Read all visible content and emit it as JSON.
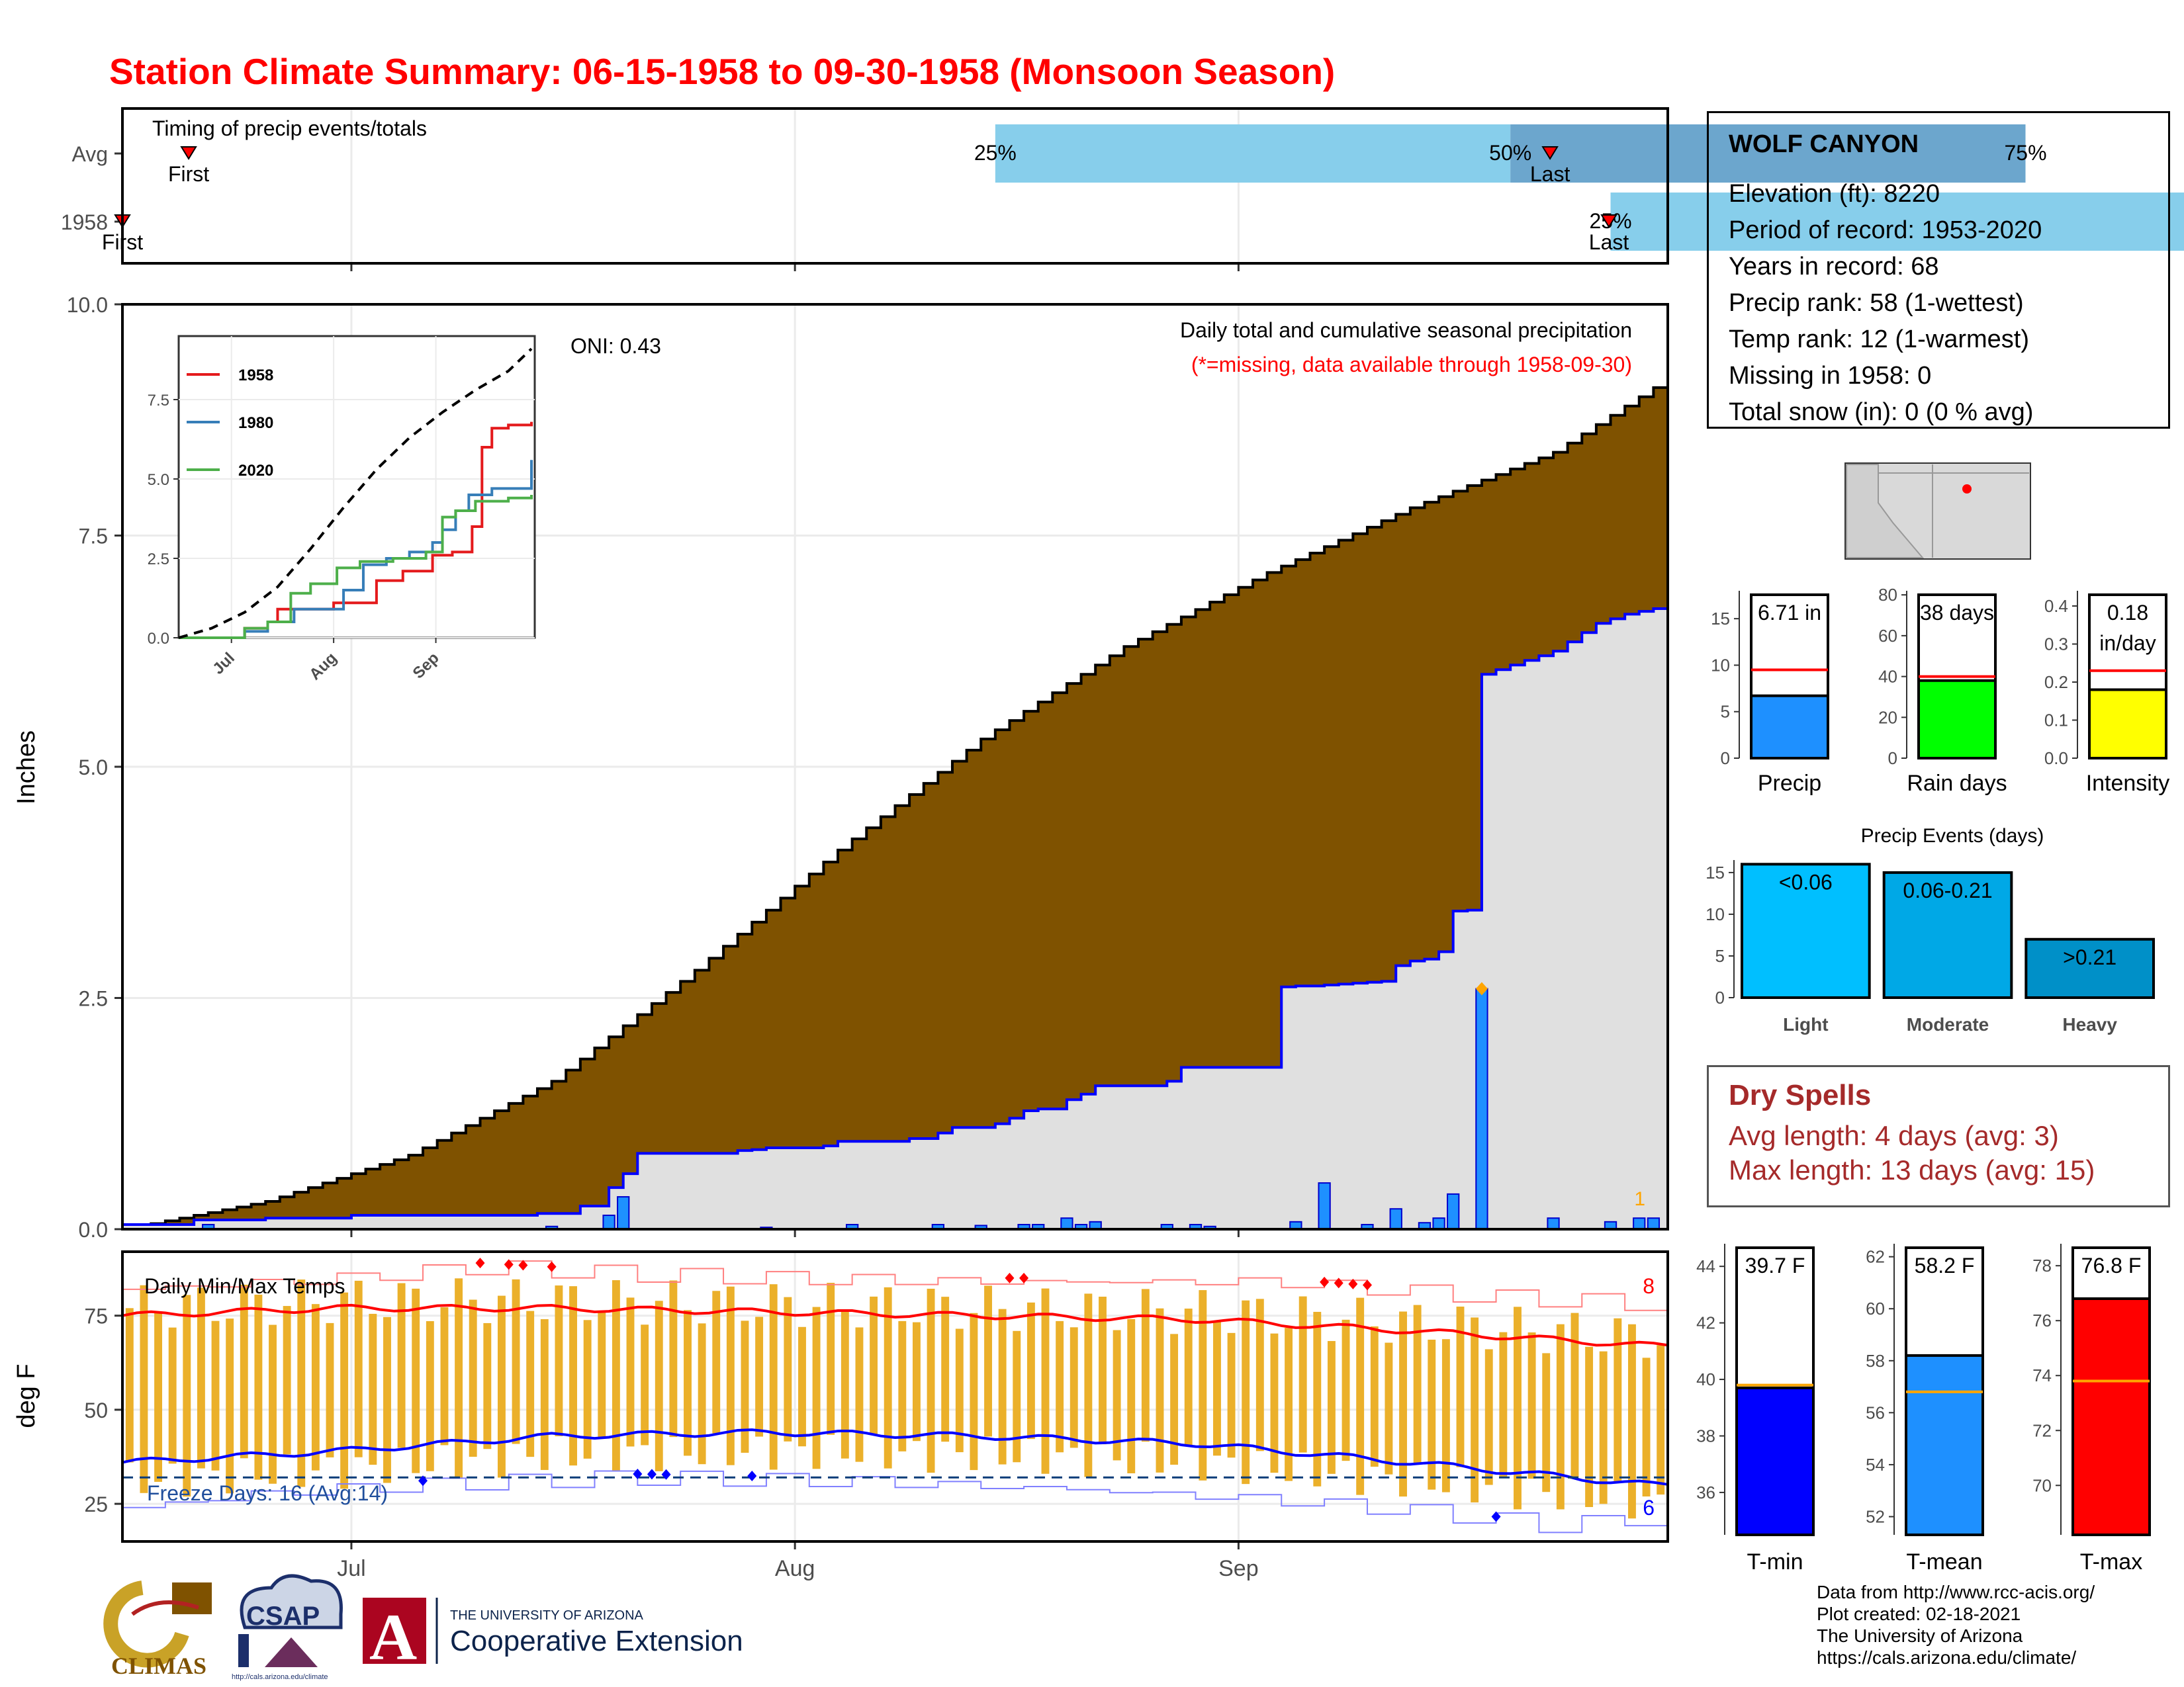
{
  "title": "Station Climate Summary: 06-15-1958 to 09-30-1958 (Monsoon Season)",
  "colors": {
    "title": "#FF0000",
    "cumulative_avg": "#7F5200",
    "cumulative_year": "#E0E0E0",
    "daily_bar": "#1E90FF",
    "quantile_light": "#87CEEB",
    "quantile_dark": "#6CA6CD",
    "temp_bar": "#EBB02A",
    "tmax_line": "#FF0000",
    "tmin_line": "#0000FF",
    "light": "#00BFFF",
    "moderate": "#00A8E6",
    "heavy": "#0090C8"
  },
  "timing_panel": {
    "label": "Timing of precip events/totals",
    "rows": [
      {
        "name": "Avg",
        "first_day": 9,
        "last_day": 194,
        "q25_day": 61,
        "q50_day": 97,
        "q75_day": 133,
        "first_label": "First",
        "last_label": "Last",
        "q25_label": "25%",
        "q50_label": "50%",
        "q75_label": "75%"
      },
      {
        "name": "1958",
        "first_day": 0,
        "last_day": 202,
        "q25_day": 104,
        "q50_day": 161,
        "q75_day": 167,
        "first_label": "First",
        "last_label": "Last",
        "q25_label": "25%",
        "q50_label": "50%",
        "q75_label": "75%"
      }
    ]
  },
  "chart_data": [
    {
      "type": "area",
      "title": "Daily total and cumulative seasonal precipitation",
      "subtitle": "(*=missing, data available through 1958-09-30)",
      "annotation": "ONI: 0.43",
      "corner_label": "1",
      "xlabel": "",
      "ylabel": "Inches",
      "x_range": [
        "1958-06-15",
        "1958-09-30"
      ],
      "x_ticks": [
        "Jul",
        "Aug",
        "Sep"
      ],
      "x_tick_days": [
        16,
        47,
        78
      ],
      "ylim": [
        0,
        10
      ],
      "y_ticks": [
        "0.0",
        "2.5",
        "5.0",
        "7.5",
        "10.0"
      ],
      "avg_cumulative": {
        "day": [
          0,
          10,
          20,
          30,
          40,
          50,
          60,
          70,
          80,
          90,
          100,
          107
        ],
        "inches": [
          0.0,
          0.3,
          0.8,
          1.6,
          2.8,
          4.1,
          5.3,
          6.3,
          7.1,
          7.8,
          8.4,
          9.1
        ]
      },
      "year_cumulative": {
        "day": [
          0,
          5,
          10,
          16,
          29,
          32,
          34,
          35,
          36,
          43,
          44,
          45,
          49,
          50,
          55,
          57,
          58,
          61,
          62,
          63,
          64,
          66,
          67,
          68,
          73,
          74,
          81,
          82,
          84,
          85,
          86,
          87,
          88,
          89,
          90,
          91,
          92,
          93,
          94,
          95,
          96,
          97,
          98,
          99,
          100,
          101,
          102,
          103,
          104,
          105,
          106,
          107
        ],
        "inches": [
          0.05,
          0.1,
          0.12,
          0.15,
          0.17,
          0.25,
          0.45,
          0.6,
          0.82,
          0.85,
          0.86,
          0.88,
          0.9,
          0.95,
          0.98,
          1.04,
          1.1,
          1.14,
          1.2,
          1.28,
          1.3,
          1.4,
          1.46,
          1.55,
          1.6,
          1.75,
          2.62,
          2.63,
          2.64,
          2.65,
          2.66,
          2.67,
          2.68,
          2.85,
          2.9,
          2.92,
          3.0,
          3.44,
          3.45,
          6.0,
          6.05,
          6.1,
          6.15,
          6.2,
          6.25,
          6.35,
          6.45,
          6.55,
          6.6,
          6.65,
          6.68,
          6.71
        ]
      },
      "daily_precip": {
        "day": [
          6,
          30,
          34,
          35,
          45,
          51,
          57,
          60,
          63,
          64,
          66,
          67,
          68,
          73,
          75,
          76,
          82,
          84,
          87,
          89,
          91,
          92,
          93,
          95,
          100,
          104,
          106,
          107
        ],
        "inches": [
          0.05,
          0.03,
          0.15,
          0.35,
          0.02,
          0.05,
          0.05,
          0.04,
          0.05,
          0.05,
          0.12,
          0.05,
          0.08,
          0.05,
          0.05,
          0.03,
          0.08,
          0.5,
          0.05,
          0.22,
          0.07,
          0.12,
          0.38,
          2.6,
          0.12,
          0.08,
          0.12,
          0.12
        ]
      },
      "max_marker": {
        "day": 95,
        "inches": 2.6
      }
    },
    {
      "type": "line",
      "title": "",
      "xlabel": "",
      "ylabel": "Inches",
      "x_ticks": [
        "Jul",
        "Aug",
        "Sep"
      ],
      "y_ticks": [
        "0.0",
        "2.5",
        "5.0",
        "7.5"
      ],
      "ylim": [
        0,
        10
      ],
      "series": [
        {
          "name": "1958",
          "color": "#E41A1C",
          "day": [
            0,
            20,
            27,
            30,
            37,
            47,
            60,
            68,
            77,
            83,
            89,
            92,
            95,
            100,
            107
          ],
          "inches": [
            0,
            0.3,
            0.5,
            0.9,
            0.9,
            1.1,
            1.8,
            2.1,
            2.6,
            2.7,
            3.5,
            6.0,
            6.6,
            6.7,
            6.8
          ]
        },
        {
          "name": "1980",
          "color": "#377EB8",
          "day": [
            0,
            20,
            27,
            35,
            50,
            56,
            63,
            70,
            77,
            80,
            84,
            88,
            95,
            107
          ],
          "inches": [
            0,
            0.2,
            0.5,
            0.9,
            1.5,
            2.3,
            2.5,
            2.7,
            3.0,
            3.4,
            4.0,
            4.5,
            4.7,
            5.6
          ]
        },
        {
          "name": "2020",
          "color": "#4DAF4A",
          "day": [
            0,
            20,
            27,
            34,
            40,
            48,
            55,
            65,
            75,
            80,
            84,
            90,
            100,
            107
          ],
          "inches": [
            0,
            0.3,
            0.5,
            1.4,
            1.7,
            2.2,
            2.4,
            2.5,
            2.7,
            3.8,
            4.0,
            4.3,
            4.4,
            4.5
          ]
        },
        {
          "name": "",
          "color": "#000000",
          "day": [
            0,
            10,
            20,
            30,
            40,
            50,
            60,
            70,
            80,
            90,
            100,
            107
          ],
          "inches": [
            0.0,
            0.3,
            0.8,
            1.6,
            2.8,
            4.1,
            5.3,
            6.3,
            7.1,
            7.8,
            8.4,
            9.1
          ]
        }
      ]
    },
    {
      "type": "bar",
      "title": "Daily Min/Max Temps",
      "xlabel": "",
      "ylabel": "deg F",
      "x_ticks": [
        "Jul",
        "Aug",
        "Sep"
      ],
      "ylim": [
        15,
        92
      ],
      "y_ticks": [
        "25",
        "50",
        "75"
      ],
      "annotation": "Freeze Days: 16 (Avg:14)",
      "tmax_record_count": "8",
      "tmin_record_count": "6",
      "freeze_line": 32,
      "avg_tmax": {
        "day": [
          0,
          15,
          30,
          45,
          60,
          75,
          90,
          107
        ],
        "degF": [
          75,
          77,
          77,
          76,
          75,
          74,
          71,
          67
        ]
      },
      "avg_tmin": {
        "day": [
          0,
          15,
          30,
          45,
          60,
          75,
          90,
          107
        ],
        "degF": [
          36,
          39,
          43,
          44,
          43,
          41,
          36,
          30
        ]
      },
      "record_high": {
        "day": [
          0,
          15,
          25,
          35,
          45,
          60,
          80,
          95,
          107
        ],
        "degF": [
          82,
          85,
          88,
          86,
          85,
          84,
          84,
          80,
          78
        ]
      },
      "record_low": {
        "day": [
          0,
          10,
          20,
          35,
          50,
          65,
          80,
          90,
          100,
          107
        ],
        "degF": [
          24,
          28,
          30,
          32,
          31,
          29,
          26,
          23,
          19,
          22
        ]
      }
    },
    {
      "type": "bar",
      "title": "",
      "panels": [
        {
          "name": "Precip",
          "value": 6.71,
          "value_label": "6.71 in",
          "avg": 9.5,
          "ylim": [
            0,
            18
          ],
          "y_ticks": [
            "0",
            "5",
            "10",
            "15"
          ],
          "color": "#1E90FF"
        },
        {
          "name": "Rain days",
          "value": 38,
          "value_label": "38 days",
          "avg": 40,
          "ylim": [
            0,
            82
          ],
          "y_ticks": [
            "0",
            "20",
            "40",
            "60",
            "80"
          ],
          "color": "#00FF00"
        },
        {
          "name": "Intensity",
          "value": 0.18,
          "value_label": "0.18 in/day",
          "avg": 0.23,
          "ylim": [
            0,
            0.44
          ],
          "y_ticks": [
            "0.0",
            "0.1",
            "0.2",
            "0.3",
            "0.4"
          ],
          "color": "#FFFF00"
        }
      ]
    },
    {
      "type": "bar",
      "title": "Precip Events (days)",
      "categories": [
        "Light",
        "Moderate",
        "Heavy"
      ],
      "values": [
        16,
        15,
        7
      ],
      "bar_labels": [
        "<0.06",
        "0.06-0.21",
        ">0.21"
      ],
      "ylim": [
        0,
        16.5
      ],
      "y_ticks": [
        "0",
        "5",
        "10",
        "15"
      ]
    },
    {
      "type": "bar",
      "title": "",
      "panels": [
        {
          "name": "T-min",
          "value": 39.7,
          "value_label": "39.7 F",
          "avg": 39.8,
          "ylim": [
            34.5,
            44.8
          ],
          "y_ticks": [
            "36",
            "38",
            "40",
            "42",
            "44"
          ],
          "color": "#0000FF"
        },
        {
          "name": "T-mean",
          "value": 58.2,
          "value_label": "58.2 F",
          "avg": 56.8,
          "ylim": [
            51.3,
            62.5
          ],
          "y_ticks": [
            "52",
            "54",
            "56",
            "58",
            "60",
            "62"
          ],
          "color": "#1E90FF"
        },
        {
          "name": "T-max",
          "value": 76.8,
          "value_label": "76.8 F",
          "avg": 73.8,
          "ylim": [
            68.2,
            78.8
          ],
          "y_ticks": [
            "70",
            "72",
            "74",
            "76",
            "78"
          ],
          "color": "#FF0000"
        }
      ]
    }
  ],
  "station": {
    "name": "WOLF CANYON",
    "elevation": "Elevation (ft): 8220",
    "period": "Period of record: 1953-2020",
    "years": "Years in record: 68",
    "precip_rank": "Precip rank: 58 (1-wettest)",
    "temp_rank": "Temp rank: 12 (1-warmest)",
    "missing": "Missing in 1958: 0",
    "snow": "Total snow (in): 0 (0 % avg)"
  },
  "dry_spells": {
    "title": "Dry Spells",
    "avg_length": "Avg length: 4 days (avg: 3)",
    "max_length": "Max length: 13 days (avg: 15)"
  },
  "credits": {
    "source": "Data from http://www.rcc-acis.org/",
    "created": "Plot created: 02-18-2021",
    "org": "The University of Arizona",
    "url": "https://cals.arizona.edu/climate/"
  },
  "logos": {
    "climas": "CLIMAS",
    "csap": "CSAP",
    "csap_url": "http://cals.arizona.edu/climate",
    "ua_small": "THE UNIVERSITY OF ARIZONA",
    "ua_big": "Cooperative Extension",
    "ua_letter": "A"
  }
}
